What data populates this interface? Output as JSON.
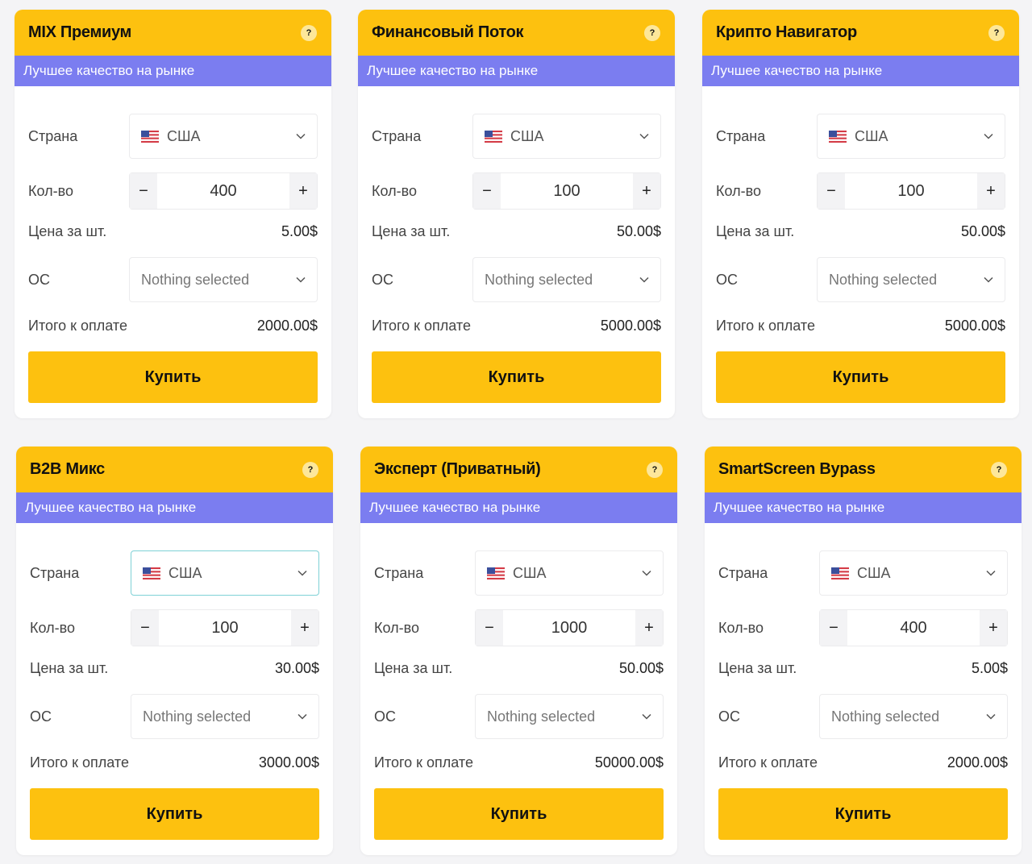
{
  "colors": {
    "header": "#fdc10f",
    "subtitle_bar": "#7b7df0",
    "button": "#fdc10f",
    "background": "#f4f4f6"
  },
  "labels": {
    "country": "Страна",
    "quantity": "Кол-во",
    "unit_price": "Цена за шт.",
    "os": "ОС",
    "total": "Итого к оплате",
    "buy": "Купить",
    "minus": "−",
    "plus": "+",
    "help": "?"
  },
  "cards": [
    {
      "title": "MIX Премиум",
      "subtitle": "Лучшее качество на рынке",
      "country": "США",
      "country_flag_icon": "us-flag-icon",
      "quantity": "400",
      "unit_price": "5.00$",
      "os": "Nothing selected",
      "total": "2000.00$"
    },
    {
      "title": "Финансовый Поток",
      "subtitle": "Лучшее качество на рынке",
      "country": "США",
      "country_flag_icon": "us-flag-icon",
      "quantity": "100",
      "unit_price": "50.00$",
      "os": "Nothing selected",
      "total": "5000.00$"
    },
    {
      "title": "Крипто Навигатор",
      "subtitle": "Лучшее качество на рынке",
      "country": "США",
      "country_flag_icon": "us-flag-icon",
      "quantity": "100",
      "unit_price": "50.00$",
      "os": "Nothing selected",
      "total": "5000.00$"
    },
    {
      "title": "B2B Микс",
      "subtitle": "Лучшее качество на рынке",
      "country": "США",
      "country_flag_icon": "us-flag-icon",
      "quantity": "100",
      "unit_price": "30.00$",
      "os": "Nothing selected",
      "total": "3000.00$"
    },
    {
      "title": "Эксперт (Приватный)",
      "subtitle": "Лучшее качество на рынке",
      "country": "США",
      "country_flag_icon": "us-flag-icon",
      "quantity": "1000",
      "unit_price": "50.00$",
      "os": "Nothing selected",
      "total": "50000.00$"
    },
    {
      "title": "SmartScreen Bypass",
      "subtitle": "Лучшее качество на рынке",
      "country": "США",
      "country_flag_icon": "us-flag-icon",
      "quantity": "400",
      "unit_price": "5.00$",
      "os": "Nothing selected",
      "total": "2000.00$"
    }
  ]
}
